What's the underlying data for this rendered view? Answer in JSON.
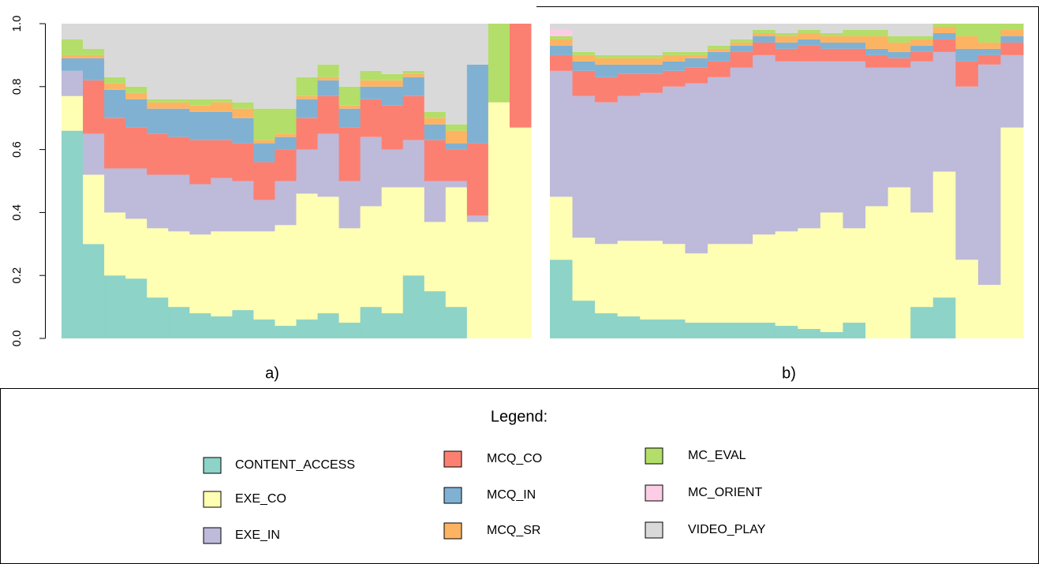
{
  "chart_data": {
    "type": "bar",
    "stacked": true,
    "ylim": [
      0,
      1
    ],
    "yticks": [
      {
        "value": 0,
        "label": "0.0"
      },
      {
        "value": 0.2,
        "label": "0.2"
      },
      {
        "value": 0.4,
        "label": "0.4"
      },
      {
        "value": 0.6,
        "label": "0.6"
      },
      {
        "value": 0.8,
        "label": "0.8"
      },
      {
        "value": 1,
        "label": "1.0"
      }
    ],
    "panels": [
      "a)",
      "b)"
    ],
    "legend_title": "Legend:",
    "series": [
      {
        "name": "CONTENT_ACCESS",
        "color": "#8dd3c7",
        "values": [
          [
            0.66,
            0.3,
            0.2,
            0.19,
            0.13,
            0.1,
            0.08,
            0.07,
            0.09,
            0.06,
            0.04,
            0.06,
            0.08,
            0.05,
            0.1,
            0.08,
            0.2,
            0.15,
            0.1,
            0,
            0,
            0
          ],
          [
            0.25,
            0.12,
            0.08,
            0.07,
            0.06,
            0.06,
            0.05,
            0.05,
            0.05,
            0.05,
            0.04,
            0.03,
            0.02,
            0.05,
            0,
            0,
            0.1,
            0.13,
            0,
            0,
            0
          ]
        ]
      },
      {
        "name": "EXE_CO",
        "color": "#ffffb3",
        "values": [
          [
            0.11,
            0.22,
            0.2,
            0.19,
            0.22,
            0.24,
            0.25,
            0.27,
            0.25,
            0.28,
            0.32,
            0.4,
            0.37,
            0.3,
            0.32,
            0.4,
            0.28,
            0.22,
            0.38,
            0.37,
            0.75,
            0.67
          ],
          [
            0.2,
            0.2,
            0.22,
            0.24,
            0.25,
            0.24,
            0.22,
            0.25,
            0.25,
            0.28,
            0.3,
            0.32,
            0.38,
            0.3,
            0.42,
            0.48,
            0.3,
            0.4,
            0.25,
            0.17,
            0.67
          ]
        ]
      },
      {
        "name": "EXE_IN",
        "color": "#bebada",
        "values": [
          [
            0.08,
            0.13,
            0.14,
            0.16,
            0.17,
            0.18,
            0.16,
            0.17,
            0.16,
            0.1,
            0.14,
            0.14,
            0.2,
            0.15,
            0.22,
            0.12,
            0.15,
            0.13,
            0.02,
            0.02,
            0,
            0
          ],
          [
            0.4,
            0.45,
            0.45,
            0.46,
            0.47,
            0.5,
            0.54,
            0.53,
            0.56,
            0.57,
            0.54,
            0.53,
            0.48,
            0.53,
            0.44,
            0.38,
            0.48,
            0.38,
            0.55,
            0.7,
            0.23
          ]
        ]
      },
      {
        "name": "MCQ_CO",
        "color": "#fb8072",
        "values": [
          [
            0,
            0.17,
            0.16,
            0.13,
            0.13,
            0.12,
            0.14,
            0.12,
            0.12,
            0.12,
            0.1,
            0.1,
            0.12,
            0.17,
            0.12,
            0.14,
            0.14,
            0.13,
            0.1,
            0.23,
            0,
            0.33
          ],
          [
            0.05,
            0.08,
            0.08,
            0.07,
            0.06,
            0.05,
            0.05,
            0.05,
            0.05,
            0.04,
            0.04,
            0.05,
            0.04,
            0.04,
            0.04,
            0.03,
            0.03,
            0.04,
            0.08,
            0.03,
            0.04
          ]
        ]
      },
      {
        "name": "MCQ_IN",
        "color": "#80b1d3",
        "values": [
          [
            0.04,
            0.07,
            0.09,
            0.09,
            0.08,
            0.09,
            0.09,
            0.09,
            0.08,
            0.06,
            0.04,
            0.06,
            0.05,
            0.06,
            0.04,
            0.06,
            0.06,
            0.05,
            0.02,
            0.25,
            0,
            0
          ],
          [
            0.03,
            0.03,
            0.04,
            0.03,
            0.03,
            0.03,
            0.03,
            0.03,
            0.02,
            0.02,
            0.02,
            0.02,
            0.02,
            0.02,
            0.02,
            0.02,
            0.02,
            0.02,
            0.04,
            0.02,
            0.02
          ]
        ]
      },
      {
        "name": "MCQ_SR",
        "color": "#fdb462",
        "values": [
          [
            0.01,
            0.01,
            0.02,
            0.02,
            0.02,
            0.02,
            0.02,
            0.03,
            0.03,
            0.01,
            0.01,
            0.01,
            0.01,
            0.01,
            0.02,
            0.02,
            0.01,
            0.02,
            0.04,
            0,
            0,
            0
          ],
          [
            0.02,
            0.02,
            0.02,
            0.02,
            0.02,
            0.02,
            0.01,
            0.01,
            0.01,
            0.01,
            0.02,
            0.02,
            0.02,
            0.02,
            0.04,
            0.03,
            0.02,
            0.02,
            0.04,
            0.02,
            0.02
          ]
        ]
      },
      {
        "name": "MC_EVAL",
        "color": "#b3de69",
        "values": [
          [
            0.05,
            0.02,
            0.02,
            0.02,
            0.01,
            0.01,
            0.02,
            0.01,
            0.02,
            0.1,
            0.08,
            0.06,
            0.04,
            0.06,
            0.03,
            0.02,
            0.01,
            0.02,
            0.02,
            0,
            0.25,
            0
          ],
          [
            0.01,
            0.01,
            0.01,
            0.01,
            0.01,
            0.01,
            0.01,
            0.01,
            0.01,
            0.01,
            0.01,
            0.01,
            0.01,
            0.02,
            0.02,
            0.02,
            0.01,
            0.01,
            0.04,
            0.06,
            0.02
          ]
        ]
      },
      {
        "name": "MC_ORIENT",
        "color": "#fccde5",
        "values": [
          [
            0,
            0,
            0,
            0,
            0,
            0,
            0,
            0,
            0,
            0,
            0,
            0,
            0,
            0,
            0,
            0,
            0,
            0,
            0,
            0,
            0,
            0
          ],
          [
            0.02,
            0,
            0,
            0,
            0,
            0,
            0,
            0,
            0,
            0,
            0,
            0,
            0,
            0,
            0,
            0,
            0,
            0,
            0,
            0,
            0
          ]
        ]
      },
      {
        "name": "VIDEO_PLAY",
        "color": "#d9d9d9",
        "values": [
          [
            0.05,
            0.08,
            0.17,
            0.2,
            0.24,
            0.24,
            0.24,
            0.24,
            0.25,
            0.27,
            0.27,
            0.17,
            0.13,
            0.2,
            0.15,
            0.16,
            0.15,
            0.28,
            0.32,
            0.13,
            0,
            0
          ],
          [
            0.02,
            0.09,
            0.1,
            0.1,
            0.1,
            0.09,
            0.09,
            0.07,
            0.05,
            0.02,
            0.03,
            0.02,
            0.03,
            0.02,
            0.02,
            0.04,
            0.04,
            0,
            0,
            0,
            0
          ]
        ]
      }
    ]
  }
}
